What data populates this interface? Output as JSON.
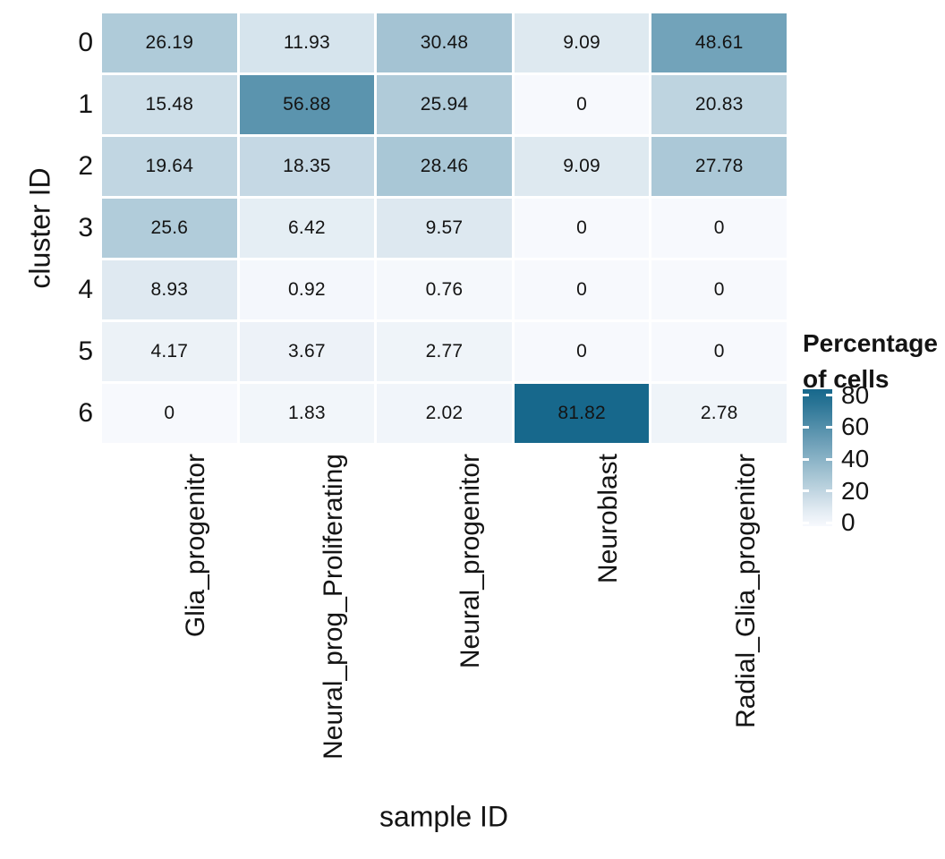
{
  "chart_data": {
    "type": "heatmap",
    "title": "",
    "xlabel": "sample ID",
    "ylabel": "cluster ID",
    "x_categories": [
      "Glia_progenitor",
      "Neural_prog_Proliferating",
      "Neural_progenitor",
      "Neuroblast",
      "Radial_Glia_progenitor"
    ],
    "y_categories": [
      "0",
      "1",
      "2",
      "3",
      "4",
      "5",
      "6"
    ],
    "values": [
      [
        26.19,
        11.93,
        30.48,
        9.09,
        48.61
      ],
      [
        15.48,
        56.88,
        25.94,
        0,
        20.83
      ],
      [
        19.64,
        18.35,
        28.46,
        9.09,
        27.78
      ],
      [
        25.6,
        6.42,
        9.57,
        0,
        0
      ],
      [
        8.93,
        0.92,
        0.76,
        0,
        0
      ],
      [
        4.17,
        3.67,
        2.77,
        0,
        0
      ],
      [
        0,
        1.83,
        2.02,
        81.82,
        2.78
      ]
    ],
    "legend": {
      "title_lines": [
        "Percentage",
        "of cells"
      ],
      "tick_values": [
        80,
        60,
        40,
        20,
        0
      ],
      "tick_labels": [
        "80",
        "60",
        "40",
        "20",
        "0"
      ]
    },
    "color_scale": {
      "low": "#f7f9fd",
      "high": "#17688c",
      "domain": [
        0,
        81.82
      ]
    },
    "grid_lines": false,
    "legend_position": "right"
  }
}
